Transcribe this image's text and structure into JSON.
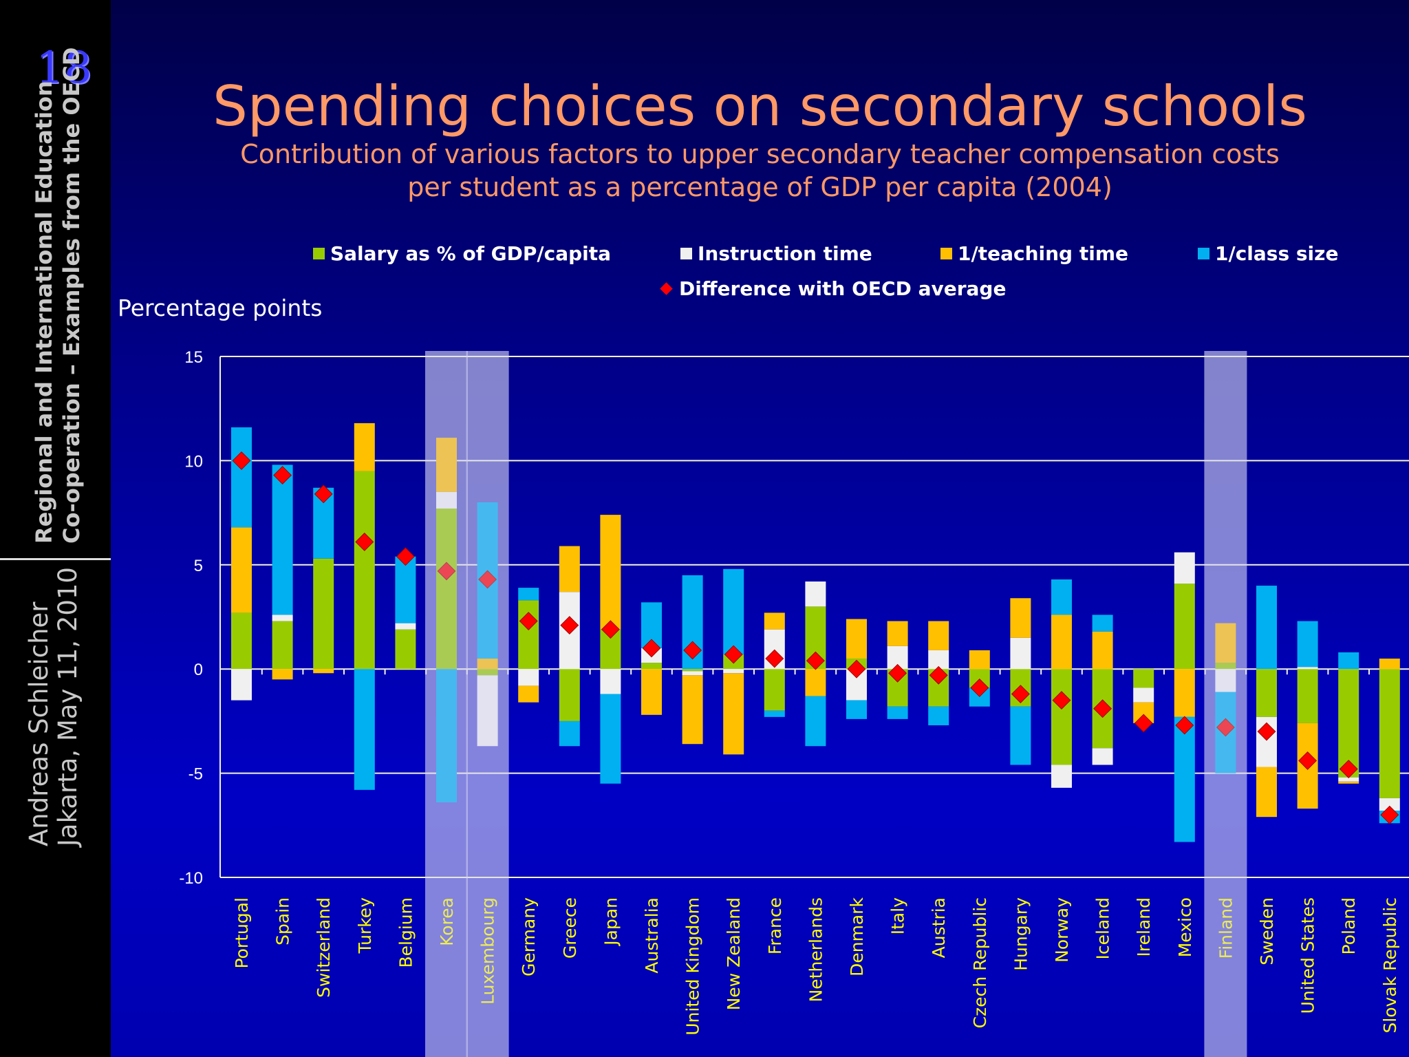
{
  "sidebar": {
    "slide_number": "18",
    "org_line1": "Regional and International Education",
    "org_line2": "Co-operation – Examples from the OECD",
    "author": "Andreas Schleicher",
    "event": "Jakarta, May 11, 2010"
  },
  "title": "Spending choices on secondary schools",
  "subtitle_line1": "Contribution of various factors to upper secondary teacher compensation costs",
  "subtitle_line2": "per student as a percentage of GDP per capita (2004)",
  "colors": {
    "salary": "#99cc00",
    "instruction": "#f0f0f0",
    "teaching": "#ffc000",
    "class": "#00b0f0",
    "diff": "#ff0000",
    "highlight": "rgba(190,190,235,0.5)",
    "title": "#ff9966",
    "category_label": "#ffff00"
  },
  "chart_data": {
    "type": "bar",
    "stacked": true,
    "ylabel": "Percentage points",
    "ylim": [
      -10,
      15
    ],
    "yticks": [
      15,
      10,
      5,
      0,
      -5,
      -10
    ],
    "grid": true,
    "legend_placement": "top",
    "highlighted": [
      "Korea",
      "Luxembourg",
      "Finland"
    ],
    "categories": [
      "Portugal",
      "Spain",
      "Switzerland",
      "Turkey",
      "Belgium",
      "Korea",
      "Luxembourg",
      "Germany",
      "Greece",
      "Japan",
      "Australia",
      "United Kingdom",
      "New Zealand",
      "France",
      "Netherlands",
      "Denmark",
      "Italy",
      "Austria",
      "Czech Republic",
      "Hungary",
      "Norway",
      "Iceland",
      "Ireland",
      "Mexico",
      "Finland",
      "Sweden",
      "United States",
      "Poland",
      "Slovak Republic"
    ],
    "series": [
      {
        "name": "Salary as % of GDP/capita",
        "key": "salary",
        "values": [
          2.7,
          2.3,
          5.3,
          9.5,
          1.9,
          7.7,
          -0.3,
          3.3,
          -2.5,
          1.9,
          0.3,
          -0.1,
          0.7,
          -2.0,
          3.0,
          0.5,
          -1.8,
          -1.8,
          -0.9,
          -1.8,
          -4.6,
          -3.8,
          -0.9,
          4.1,
          0.3,
          -2.3,
          -2.6,
          -5.2,
          -6.2
        ]
      },
      {
        "name": "Instruction time",
        "key": "instruction",
        "values": [
          -1.5,
          0.3,
          0,
          0,
          0.3,
          0.8,
          -3.4,
          -0.8,
          3.7,
          -1.2,
          0.7,
          -0.2,
          -0.2,
          1.9,
          1.2,
          -1.5,
          1.1,
          0.9,
          0,
          1.5,
          -1.1,
          -0.8,
          -0.7,
          1.5,
          -1.1,
          -2.4,
          0.1,
          -0.2,
          -0.6
        ]
      },
      {
        "name": "1/teaching time",
        "key": "teaching",
        "values": [
          4.1,
          -0.5,
          -0.2,
          2.3,
          0,
          2.6,
          0.5,
          -0.8,
          2.2,
          5.5,
          -2.2,
          -3.3,
          -3.9,
          0.8,
          -1.3,
          1.9,
          1.2,
          1.4,
          0.9,
          1.9,
          2.6,
          1.8,
          -1.0,
          -2.3,
          1.9,
          -2.4,
          -4.1,
          -0.1,
          0.5
        ]
      },
      {
        "name": "1/class size",
        "key": "class",
        "values": [
          4.8,
          7.2,
          3.4,
          -5.8,
          3.2,
          -6.4,
          7.5,
          0.6,
          -1.2,
          -4.3,
          2.2,
          4.5,
          4.1,
          -0.3,
          -2.4,
          -0.9,
          -0.6,
          -0.9,
          -0.9,
          -2.8,
          1.7,
          0.8,
          0,
          -6.0,
          -3.9,
          4.0,
          2.2,
          0.8,
          -0.6
        ]
      }
    ],
    "markers": {
      "name": "Difference with OECD average",
      "values": [
        10.0,
        9.3,
        8.4,
        6.1,
        5.4,
        4.7,
        4.3,
        2.3,
        2.1,
        1.9,
        1.0,
        0.9,
        0.7,
        0.5,
        0.4,
        0.0,
        -0.2,
        -0.3,
        -0.9,
        -1.2,
        -1.5,
        -1.9,
        -2.6,
        -2.7,
        -2.8,
        -3.0,
        -4.4,
        -4.8,
        -7.0
      ]
    }
  }
}
